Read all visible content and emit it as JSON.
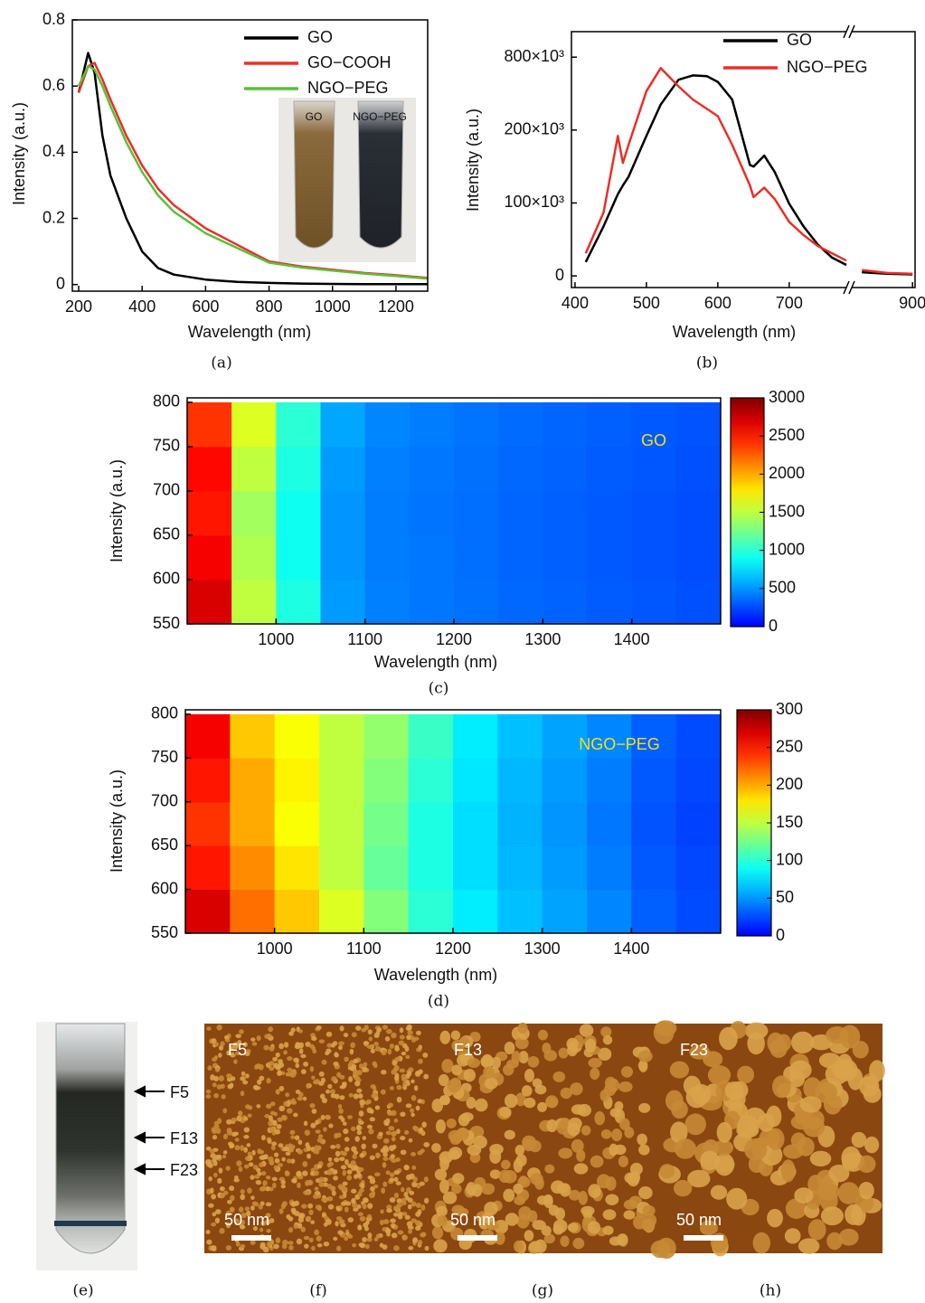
{
  "chart_data": [
    {
      "type": "line",
      "caption": "(a)",
      "x_label": "Wavelength (nm)",
      "y_label": "Intensity (a.u.)",
      "x": [
        200,
        230,
        250,
        275,
        300,
        350,
        400,
        450,
        500,
        600,
        700,
        800,
        900,
        1000,
        1100,
        1200,
        1300
      ],
      "series": [
        {
          "name": "GO",
          "color": "#000000",
          "values": [
            0.58,
            0.7,
            0.64,
            0.45,
            0.33,
            0.2,
            0.1,
            0.05,
            0.03,
            0.015,
            0.008,
            0.005,
            0.003,
            0.002,
            0.001,
            0.001,
            0.001
          ]
        },
        {
          "name": "GO−COOH",
          "color": "#e8302a",
          "values": [
            0.58,
            0.66,
            0.67,
            0.62,
            0.56,
            0.45,
            0.36,
            0.29,
            0.24,
            0.17,
            0.12,
            0.07,
            0.055,
            0.045,
            0.035,
            0.028,
            0.02
          ]
        },
        {
          "name": "NGO−PEG",
          "color": "#5cbf3a",
          "values": [
            0.6,
            0.66,
            0.65,
            0.6,
            0.54,
            0.43,
            0.34,
            0.27,
            0.22,
            0.155,
            0.11,
            0.066,
            0.052,
            0.042,
            0.033,
            0.026,
            0.018
          ]
        }
      ],
      "xlim": [
        180,
        1300
      ],
      "xticks": [
        200,
        400,
        600,
        800,
        1000,
        1200
      ],
      "ylim": [
        -0.02,
        0.8
      ],
      "yticks": [
        0.0,
        0.2,
        0.4,
        0.6,
        0.8
      ],
      "legend": "upper right",
      "inset_labels": [
        "GO",
        "NGO−PEG"
      ]
    },
    {
      "type": "line",
      "caption": "(b)",
      "x_label": "Wavelength (nm)",
      "y_label": "Intensity (a.u.)",
      "x": [
        415,
        440,
        460,
        467,
        475,
        500,
        520,
        545,
        565,
        585,
        600,
        620,
        645,
        650,
        665,
        680,
        700,
        720,
        740,
        760,
        780,
        800,
        850,
        900
      ],
      "series": [
        {
          "name": "GO",
          "color": "#000000",
          "values": [
            19000,
            68000,
            112000,
            124000,
            136000,
            192000,
            410000,
            614000,
            650000,
            643000,
            596000,
            452000,
            152000,
            150000,
            165000,
            142000,
            99000,
            68000,
            43000,
            25000,
            15000,
            5000,
            3000,
            2000
          ]
        },
        {
          "name": "NGO−PEG",
          "color": "#e8302a",
          "values": [
            31000,
            87000,
            192000,
            155000,
            180000,
            520000,
            710000,
            560000,
            452000,
            374000,
            314000,
            180000,
            124000,
            108000,
            121000,
            105000,
            74000,
            56000,
            41000,
            31000,
            21000,
            8000,
            4000,
            3000
          ]
        }
      ],
      "xlim": [
        395,
        905
      ],
      "xbreak": 780,
      "xticks": [
        400,
        500,
        600,
        700,
        900
      ],
      "ylim": [
        -16000,
        1010000
      ],
      "yticks": [
        0,
        {
          "value": 100000,
          "label": "100×10³"
        },
        {
          "value": 200000,
          "label": "200×10³"
        },
        {
          "value": 800000,
          "label": "800×10³"
        }
      ],
      "legend": "upper right"
    },
    {
      "type": "heatmap",
      "caption": "(c)",
      "x_label": "Wavelength (nm)",
      "y_label": "Intensity (a.u.)",
      "label": "GO",
      "label_color": "#f2e21a",
      "x": [
        925,
        975,
        1025,
        1075,
        1125,
        1175,
        1225,
        1275,
        1325,
        1375,
        1425,
        1475
      ],
      "y": [
        575,
        625,
        675,
        725,
        775
      ],
      "z": [
        [
          2700,
          1500,
          950,
          520,
          430,
          400,
          380,
          350,
          330,
          310,
          290,
          270
        ],
        [
          2600,
          1450,
          900,
          500,
          420,
          400,
          370,
          340,
          320,
          300,
          280,
          260
        ],
        [
          2500,
          1400,
          900,
          500,
          420,
          390,
          370,
          340,
          320,
          300,
          280,
          260
        ],
        [
          2550,
          1500,
          950,
          520,
          430,
          400,
          380,
          350,
          330,
          310,
          290,
          270
        ],
        [
          2400,
          1600,
          1000,
          560,
          450,
          420,
          390,
          360,
          340,
          320,
          300,
          280
        ]
      ],
      "xlim": [
        900,
        1500
      ],
      "xticks": [
        1000,
        1100,
        1200,
        1300,
        1400
      ],
      "ylim": [
        550,
        805
      ],
      "yticks": [
        550,
        600,
        650,
        700,
        750,
        800
      ],
      "zlim": [
        0,
        3000
      ],
      "zticks": [
        0,
        500,
        1000,
        1500,
        2000,
        2500,
        3000
      ],
      "colormap": "jet"
    },
    {
      "type": "heatmap",
      "caption": "(d)",
      "x_label": "Wavelength (nm)",
      "y_label": "Intensity (a.u.)",
      "label": "NGO−PEG",
      "label_color": "#f2e21a",
      "x": [
        925,
        975,
        1025,
        1075,
        1125,
        1175,
        1225,
        1275,
        1325,
        1375,
        1425,
        1475
      ],
      "y": [
        575,
        625,
        675,
        725,
        775
      ],
      "z": [
        [
          270,
          220,
          190,
          160,
          130,
          100,
          80,
          65,
          55,
          45,
          32,
          25
        ],
        [
          250,
          210,
          180,
          150,
          120,
          95,
          75,
          62,
          52,
          42,
          30,
          24
        ],
        [
          240,
          200,
          170,
          150,
          125,
          95,
          75,
          60,
          50,
          40,
          28,
          22
        ],
        [
          250,
          200,
          175,
          150,
          130,
          100,
          78,
          62,
          52,
          42,
          30,
          24
        ],
        [
          260,
          190,
          170,
          150,
          135,
          105,
          80,
          65,
          55,
          45,
          32,
          25
        ]
      ],
      "xlim": [
        900,
        1500
      ],
      "xticks": [
        1000,
        1100,
        1200,
        1300,
        1400
      ],
      "ylim": [
        550,
        805
      ],
      "yticks": [
        550,
        600,
        650,
        700,
        750,
        800
      ],
      "zlim": [
        0,
        300
      ],
      "zticks": [
        0,
        50,
        100,
        150,
        200,
        250,
        300
      ],
      "colormap": "jet"
    }
  ],
  "figure": {
    "captions": [
      "(e)",
      "(f)",
      "(g)",
      "(h)"
    ],
    "tube_labels": [
      "F5",
      "F13",
      "F23"
    ],
    "afm_labels": [
      "F5",
      "F13",
      "F23"
    ],
    "scale_bar": "50 nm"
  }
}
